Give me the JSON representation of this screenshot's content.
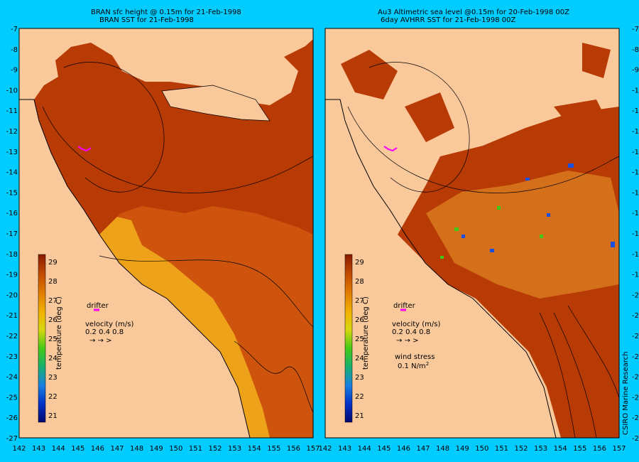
{
  "left_panel": {
    "title1": "BRAN sfc height @ 0.15m for 21-Feb-1998",
    "title2": "BRAN SST for 21-Feb-1998"
  },
  "right_panel": {
    "title1": "Au3 Altimetric sea level  @0.15m  for 20-Feb-1998 00Z",
    "title2": "6day AVHRR SST for 21-Feb-1998 00Z"
  },
  "legend": {
    "colorbar_label": "temperature (deg C)",
    "colorbar_ticks": [
      "29",
      "28",
      "27",
      "26",
      "25",
      "24",
      "23",
      "22",
      "21"
    ],
    "drifter_label": "drifter",
    "velocity_label": "velocity (m/s)",
    "velocity_values": "0.2 0.4 0.8",
    "wind_label": "wind stress",
    "wind_value": "0.1 N/m",
    "wind_exp": "2"
  },
  "credit": "CSIRO Marine Research",
  "lat_labels": [
    "-7",
    "-8",
    "-9",
    "-10",
    "-11",
    "-12",
    "-13",
    "-14",
    "-15",
    "-16",
    "-17",
    "-18",
    "-19",
    "-20",
    "-21",
    "-22",
    "-23",
    "-24",
    "-25",
    "-26",
    "-27"
  ],
  "lon_labels": [
    "142",
    "143",
    "144",
    "145",
    "146",
    "147",
    "148",
    "149",
    "150",
    "151",
    "152",
    "153",
    "154",
    "155",
    "156",
    "157"
  ],
  "colors": {
    "background": "#00ccff",
    "land": "#f9c89b",
    "warm": "#b83400",
    "cool": "#f2b830"
  }
}
